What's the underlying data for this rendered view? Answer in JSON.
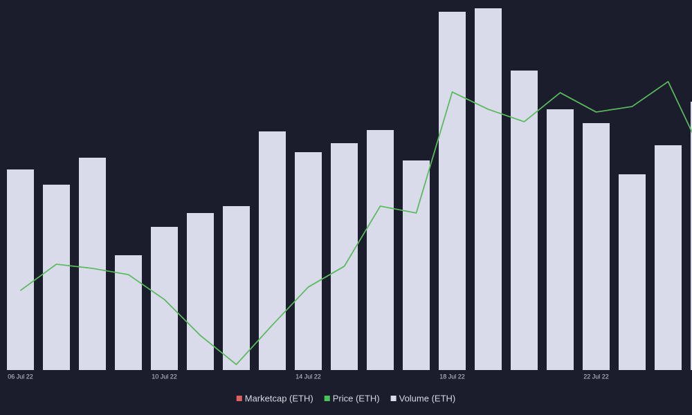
{
  "chart_data": {
    "type": "bar",
    "categories": [
      "06 Jul 22",
      null,
      null,
      null,
      "10 Jul 22",
      null,
      null,
      null,
      "14 Jul 22",
      null,
      null,
      null,
      "18 Jul 22",
      null,
      null,
      null,
      "22 Jul 22",
      null,
      null,
      null
    ],
    "series": [
      {
        "name": "Marketcap (ETH)",
        "type": "line",
        "axis": "y2",
        "color": "#e06060",
        "values": [
          115,
          153,
          147,
          138,
          102,
          50,
          8,
          65,
          120,
          150,
          237,
          227,
          402,
          377,
          359,
          401,
          373,
          381,
          417,
          307
        ]
      },
      {
        "name": "Price (ETH)",
        "type": "line",
        "axis": "y2",
        "color": "#4cc35a",
        "values": [
          115,
          153,
          147,
          138,
          102,
          50,
          8,
          65,
          120,
          150,
          237,
          227,
          402,
          377,
          359,
          401,
          373,
          381,
          417,
          307
        ]
      },
      {
        "name": "Volume (ETH)",
        "type": "bar",
        "color": "#d9dbeb",
        "values": [
          290,
          268,
          307,
          166,
          207,
          227,
          237,
          345,
          315,
          328,
          347,
          303,
          518,
          523,
          433,
          377,
          357,
          283,
          325,
          388
        ]
      }
    ],
    "ylim": [
      0,
      525
    ],
    "y2lim": [
      0,
      525
    ],
    "legend": "bottom"
  }
}
